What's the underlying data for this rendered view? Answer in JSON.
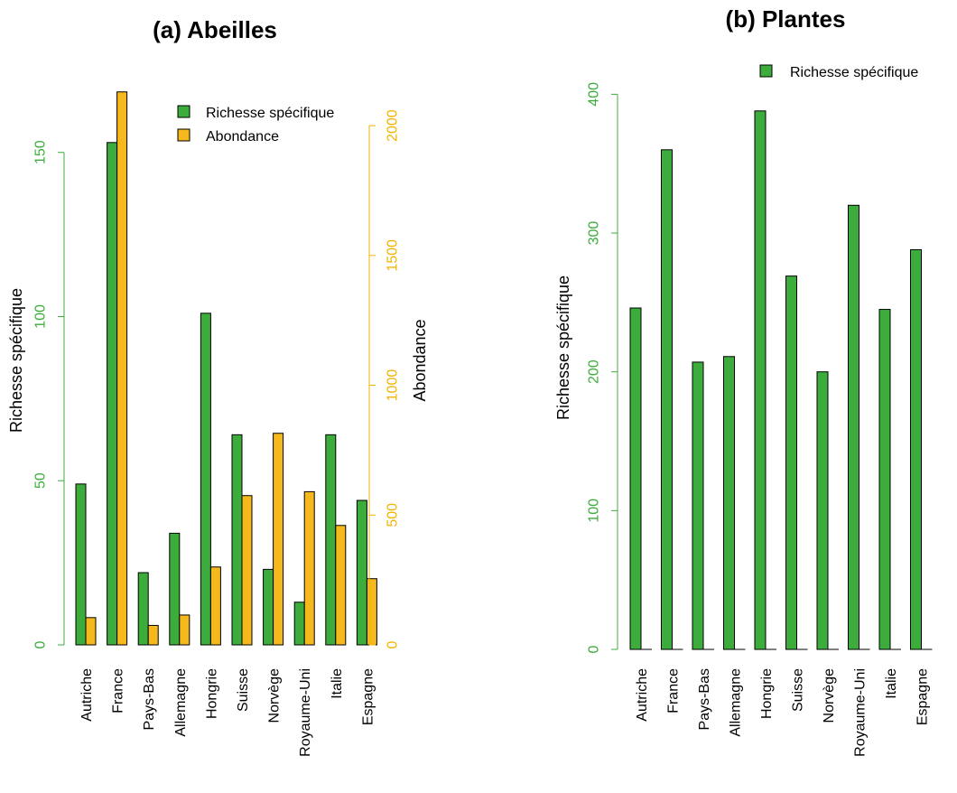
{
  "colors": {
    "richness": "#3cac3c",
    "abundance": "#f5b91d",
    "richness_axis": "#3cac3c",
    "abundance_axis": "#f0b400",
    "bar_stroke": "#000000"
  },
  "chart_data": [
    {
      "type": "bar",
      "title": "(a) Abeilles",
      "categories": [
        "Autriche",
        "France",
        "Pays-Bas",
        "Allemagne",
        "Hongrie",
        "Suisse",
        "Norvège",
        "Royaume-Uni",
        "Italie",
        "Espagne"
      ],
      "series": [
        {
          "name": "Richesse spécifique",
          "axis": "left",
          "values": [
            49,
            153,
            22,
            34,
            101,
            64,
            23,
            13,
            64,
            44
          ]
        },
        {
          "name": "Abondance",
          "axis": "right",
          "values": [
            105,
            2130,
            75,
            115,
            300,
            575,
            815,
            590,
            460,
            255
          ]
        }
      ],
      "ylabel": "Richesse spécifique",
      "ylim": [
        0,
        170
      ],
      "yticks": [
        0,
        50,
        100,
        150
      ],
      "ytick_labels": [
        "0",
        "50",
        "100",
        "150"
      ],
      "y2label": "Abondance",
      "y2lim": [
        0,
        2150
      ],
      "y2ticks": [
        0,
        500,
        1000,
        1500,
        2000
      ],
      "y2tick_labels": [
        "0",
        "500",
        "1000",
        "1500",
        "2000"
      ],
      "legend": {
        "position": "top-right",
        "entries": [
          "Richesse spécifique",
          "Abondance"
        ]
      }
    },
    {
      "type": "bar",
      "title": "(b) Plantes",
      "categories": [
        "Autriche",
        "France",
        "Pays-Bas",
        "Allemagne",
        "Hongrie",
        "Suisse",
        "Norvège",
        "Royaume-Uni",
        "Italie",
        "Espagne"
      ],
      "series": [
        {
          "name": "Richesse spécifique",
          "axis": "left",
          "values": [
            246,
            360,
            207,
            211,
            388,
            269,
            200,
            320,
            245,
            288
          ]
        }
      ],
      "ylabel": "Richesse spécifique",
      "ylim": [
        0,
        410
      ],
      "yticks": [
        0,
        100,
        200,
        300,
        400
      ],
      "ytick_labels": [
        "0",
        "100",
        "200",
        "300",
        "400"
      ],
      "legend": {
        "position": "top-right",
        "entries": [
          "Richesse spécifique"
        ]
      }
    }
  ]
}
